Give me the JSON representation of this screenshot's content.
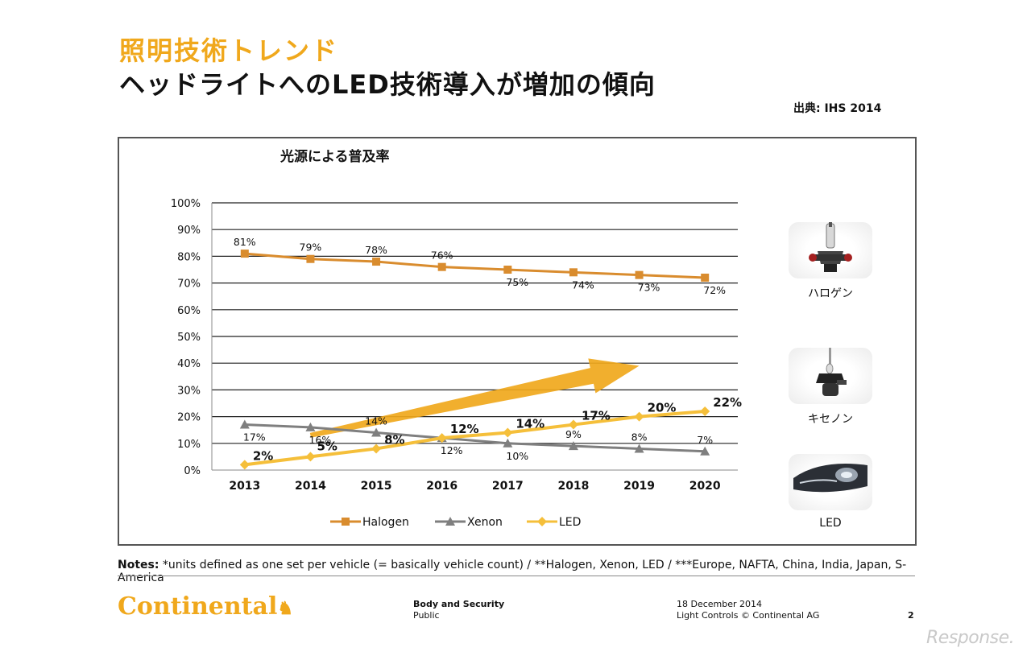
{
  "header": {
    "title_main": "照明技術トレンド",
    "title_sub": "ヘッドライトへのLED技術導入が増加の傾向",
    "source": "出典: IHS 2014"
  },
  "chart_data": {
    "type": "line",
    "title": "光源による普及率",
    "x": [
      "2013",
      "2014",
      "2015",
      "2016",
      "2017",
      "2018",
      "2019",
      "2020"
    ],
    "y_ticks": [
      "0%",
      "10%",
      "20%",
      "30%",
      "40%",
      "50%",
      "60%",
      "70%",
      "80%",
      "90%",
      "100%"
    ],
    "ylim": [
      0,
      100
    ],
    "grid": true,
    "legend_position": "bottom",
    "trend_arrow": {
      "from": {
        "x": "2014",
        "y": 13
      },
      "to": {
        "x": "2019",
        "y": 39
      },
      "color": "#f0a81c"
    },
    "series": [
      {
        "name": "Halogen",
        "color": "#d98c2e",
        "marker": "square",
        "values": [
          81,
          79,
          78,
          76,
          75,
          74,
          73,
          72
        ],
        "labels": [
          "81%",
          "79%",
          "78%",
          "76%",
          "75%",
          "74%",
          "73%",
          "72%"
        ],
        "label_side": [
          "above",
          "above",
          "above",
          "above",
          "below",
          "below",
          "below",
          "below"
        ],
        "label_bold": false
      },
      {
        "name": "Xenon",
        "color": "#7f7f7f",
        "marker": "triangle",
        "values": [
          17,
          16,
          14,
          12,
          10,
          9,
          8,
          7
        ],
        "labels": [
          "17%",
          "16%",
          "14%",
          "12%",
          "10%",
          "9%",
          "8%",
          "7%"
        ],
        "label_side": [
          "below",
          "below",
          "above",
          "below",
          "below",
          "above",
          "above",
          "above"
        ],
        "label_bold": false
      },
      {
        "name": "LED",
        "color": "#f5bf3a",
        "marker": "diamond",
        "values": [
          2,
          5,
          8,
          12,
          14,
          17,
          20,
          22
        ],
        "labels": [
          "2%",
          "5%",
          "8%",
          "12%",
          "14%",
          "17%",
          "20%",
          "22%"
        ],
        "label_side": [
          "right",
          "above",
          "above",
          "above",
          "above",
          "above",
          "above",
          "above"
        ],
        "label_bold": true
      }
    ]
  },
  "side_panel": {
    "items": [
      {
        "label": "ハロゲン",
        "icon": "halogen-bulb-icon"
      },
      {
        "label": "キセノン",
        "icon": "xenon-bulb-icon"
      },
      {
        "label": "LED",
        "icon": "led-headlamp-icon"
      }
    ]
  },
  "notes": {
    "prefix": "Notes:",
    "text": " *units defined as one set per vehicle (= basically vehicle count) / **Halogen, Xenon, LED / ***Europe, NAFTA, China, India, Japan, S-America"
  },
  "footer": {
    "logo_text": "Continental",
    "division": "Body and Security",
    "classification": "Public",
    "date": "18 December 2014",
    "copyright": "Light Controls © Continental AG",
    "page": "2"
  },
  "watermark": "Response."
}
